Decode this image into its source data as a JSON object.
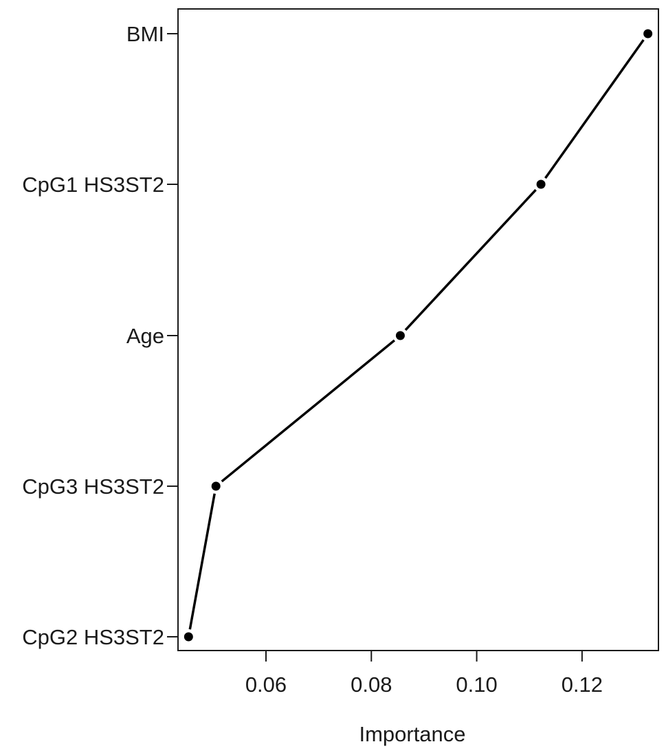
{
  "chart_data": {
    "type": "line",
    "xlabel": "Importance",
    "ylabel": "",
    "title": "",
    "categories": [
      "CpG2 HS3ST2",
      "CpG3 HS3ST2",
      "Age",
      "CpG1 HS3ST2",
      "BMI"
    ],
    "values": [
      0.0453,
      0.0505,
      0.0855,
      0.1122,
      0.1325
    ],
    "xlim": [
      0.0433,
      0.1345
    ],
    "xticks": [
      0.06,
      0.08,
      0.1,
      0.12
    ],
    "xtick_labels": [
      "0.06",
      "0.08",
      "0.10",
      "0.12"
    ],
    "grid": false,
    "legend": "none"
  }
}
